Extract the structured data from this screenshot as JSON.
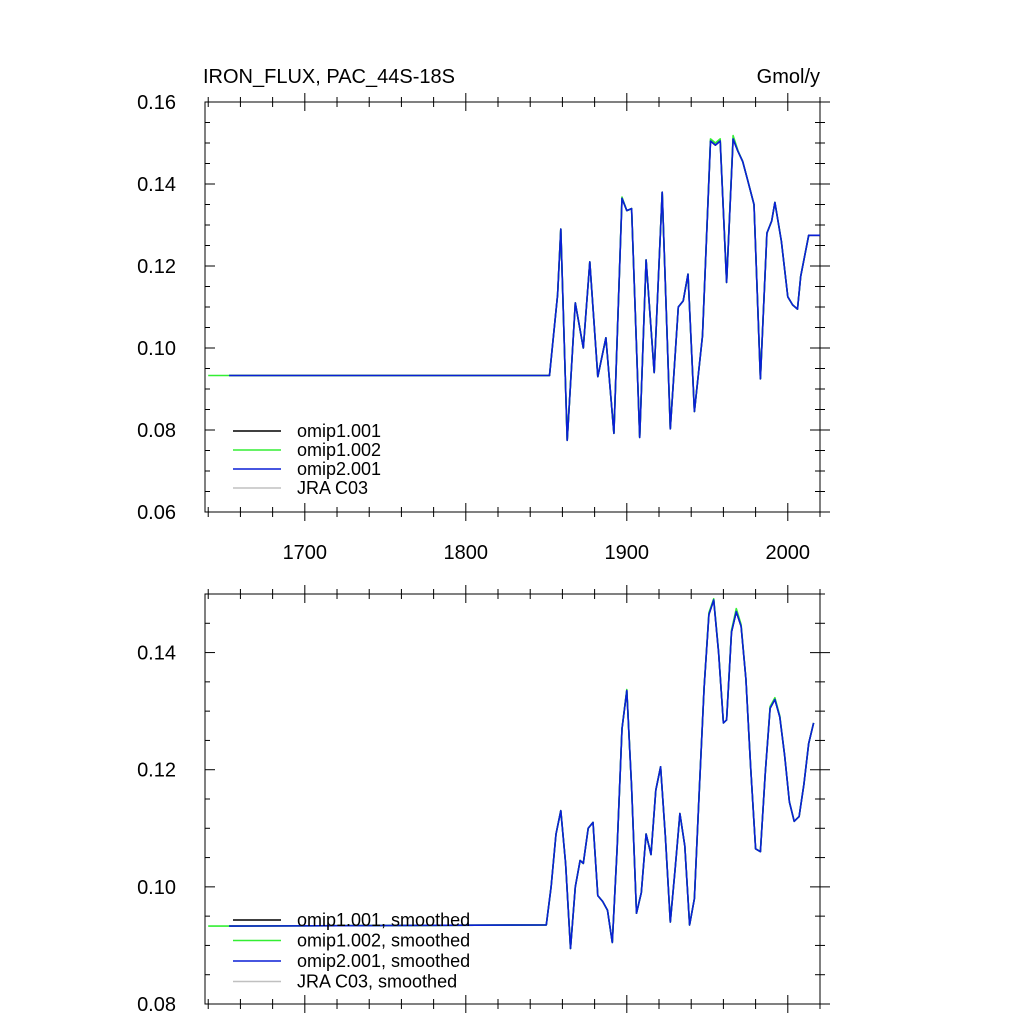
{
  "chart_data": [
    {
      "type": "line",
      "title": "IRON_FLUX, PAC_44S-18S",
      "units": "Gmol/y",
      "xlim": [
        1638,
        2020
      ],
      "ylim": [
        0.06,
        0.16
      ],
      "xticks": [
        1700,
        1800,
        1900,
        2000
      ],
      "yticks": [
        0.06,
        0.08,
        0.1,
        0.12,
        0.14,
        0.16
      ],
      "ytick_labels": [
        "0.06",
        "0.08",
        "0.10",
        "0.12",
        "0.14",
        "0.16"
      ],
      "grid": false,
      "legend_placement": "bottom-left",
      "series": [
        {
          "name": "omip1.001",
          "color": "#000000",
          "x": [
            1653,
            1852,
            1857,
            1859,
            1863,
            1868,
            1873,
            1877,
            1882,
            1887,
            1892,
            1897,
            1900,
            1903,
            1908,
            1912,
            1917,
            1922,
            1927,
            1932,
            1935,
            1938,
            1942,
            1947,
            1952,
            1955,
            1958,
            1962,
            1966,
            1969,
            1972,
            1975,
            1979,
            1983,
            1987,
            1990,
            1992,
            1996,
            2000,
            2003,
            2006,
            2008,
            2013,
            2020
          ],
          "y": [
            0.0933,
            0.0933,
            0.113,
            0.129,
            0.0775,
            0.111,
            0.1,
            0.121,
            0.093,
            0.1025,
            0.0792,
            0.1365,
            0.1335,
            0.134,
            0.0782,
            0.1215,
            0.094,
            0.138,
            0.0803,
            0.11,
            0.1115,
            0.118,
            0.0845,
            0.103,
            0.1505,
            0.1495,
            0.1505,
            0.116,
            0.151,
            0.148,
            0.1455,
            0.141,
            0.135,
            0.0925,
            0.128,
            0.131,
            0.1355,
            0.126,
            0.1125,
            0.1105,
            0.1095,
            0.1175,
            0.1275,
            0.1275
          ]
        },
        {
          "name": "omip1.002",
          "color": "#33ee33",
          "x": [
            1640,
            1653,
            1852,
            1857,
            1859,
            1863,
            1868,
            1873,
            1877,
            1882,
            1887,
            1892,
            1897,
            1900,
            1903,
            1908,
            1912,
            1917,
            1922,
            1927,
            1932,
            1935,
            1938,
            1942,
            1947,
            1952,
            1955,
            1958,
            1962,
            1966,
            1969,
            1972,
            1975,
            1979,
            1983,
            1987,
            1990,
            1992,
            1996,
            2000,
            2003,
            2006,
            2008,
            2013
          ],
          "y": [
            0.0933,
            0.0933,
            0.0933,
            0.113,
            0.129,
            0.0775,
            0.111,
            0.1,
            0.121,
            0.093,
            0.1025,
            0.0792,
            0.1368,
            0.1335,
            0.134,
            0.0782,
            0.1215,
            0.094,
            0.138,
            0.0803,
            0.11,
            0.1115,
            0.118,
            0.0845,
            0.103,
            0.151,
            0.15,
            0.151,
            0.116,
            0.1518,
            0.1482,
            0.1455,
            0.141,
            0.135,
            0.0925,
            0.128,
            0.131,
            0.1355,
            0.126,
            0.1125,
            0.1105,
            0.1095,
            0.1175,
            0.1275
          ]
        },
        {
          "name": "omip2.001",
          "color": "#0a1fd6",
          "x": [
            1653,
            1852,
            1857,
            1859,
            1863,
            1868,
            1873,
            1877,
            1882,
            1887,
            1892,
            1897,
            1900,
            1903,
            1908,
            1912,
            1917,
            1922,
            1927,
            1932,
            1935,
            1938,
            1942,
            1947,
            1952,
            1955,
            1958,
            1962,
            1966,
            1969,
            1972,
            1975,
            1979,
            1983,
            1987,
            1990,
            1992,
            1996,
            2000,
            2003,
            2006,
            2008,
            2013,
            2020
          ],
          "y": [
            0.0933,
            0.0933,
            0.113,
            0.129,
            0.0775,
            0.111,
            0.1,
            0.121,
            0.093,
            0.1025,
            0.0792,
            0.1365,
            0.1335,
            0.134,
            0.0782,
            0.1215,
            0.094,
            0.138,
            0.0803,
            0.11,
            0.1115,
            0.118,
            0.0845,
            0.103,
            0.1505,
            0.1495,
            0.1505,
            0.116,
            0.151,
            0.148,
            0.1455,
            0.141,
            0.135,
            0.0925,
            0.128,
            0.131,
            0.1355,
            0.126,
            0.1125,
            0.1105,
            0.1095,
            0.1175,
            0.1275,
            0.1275
          ]
        },
        {
          "name": "JRA C03",
          "color": "#c0c0c0",
          "x": [],
          "y": []
        }
      ]
    },
    {
      "type": "line",
      "xlim": [
        1638,
        2020
      ],
      "ylim": [
        0.08,
        0.15
      ],
      "xticks": [
        1700,
        1800,
        1900,
        2000
      ],
      "yticks": [
        0.08,
        0.1,
        0.12,
        0.14
      ],
      "ytick_labels": [
        "0.08",
        "0.10",
        "0.12",
        "0.14"
      ],
      "grid": false,
      "legend_placement": "bottom-left",
      "series": [
        {
          "name": "omip1.001, smoothed",
          "color": "#000000",
          "x": [
            1653,
            1850,
            1853,
            1856,
            1859,
            1862,
            1865,
            1868,
            1871,
            1873,
            1876,
            1879,
            1882,
            1885,
            1888,
            1891,
            1894,
            1897,
            1900,
            1903,
            1906,
            1909,
            1912,
            1915,
            1918,
            1921,
            1924,
            1927,
            1930,
            1933,
            1936,
            1939,
            1942,
            1945,
            1948,
            1951,
            1954,
            1957,
            1960,
            1962,
            1965,
            1968,
            1971,
            1974,
            1977,
            1980,
            1983,
            1986,
            1989,
            1992,
            1995,
            1998,
            2001,
            2004,
            2007,
            2010,
            2013,
            2016
          ],
          "y": [
            0.0933,
            0.0935,
            0.1,
            0.109,
            0.113,
            0.104,
            0.0895,
            0.1,
            0.1045,
            0.104,
            0.11,
            0.111,
            0.0985,
            0.0975,
            0.096,
            0.0905,
            0.1065,
            0.127,
            0.1335,
            0.117,
            0.0955,
            0.099,
            0.109,
            0.1055,
            0.1165,
            0.1205,
            0.1085,
            0.094,
            0.103,
            0.1125,
            0.107,
            0.0935,
            0.098,
            0.1165,
            0.134,
            0.1465,
            0.149,
            0.14,
            0.128,
            0.1285,
            0.1435,
            0.147,
            0.1445,
            0.1355,
            0.12,
            0.1065,
            0.106,
            0.1195,
            0.1305,
            0.132,
            0.129,
            0.1225,
            0.1145,
            0.1112,
            0.112,
            0.1175,
            0.1245,
            0.128
          ]
        },
        {
          "name": "omip1.002, smoothed",
          "color": "#33ee33",
          "x": [
            1640,
            1653,
            1850,
            1853,
            1856,
            1859,
            1862,
            1865,
            1868,
            1871,
            1873,
            1876,
            1879,
            1882,
            1885,
            1888,
            1891,
            1894,
            1897,
            1900,
            1903,
            1906,
            1909,
            1912,
            1915,
            1918,
            1921,
            1924,
            1927,
            1930,
            1933,
            1936,
            1939,
            1942,
            1945,
            1948,
            1951,
            1954,
            1957,
            1960,
            1962,
            1965,
            1968,
            1971,
            1974,
            1977,
            1980,
            1983,
            1986,
            1989,
            1992,
            1995,
            1998,
            2001,
            2004,
            2007,
            2010,
            2013,
            2016
          ],
          "y": [
            0.0933,
            0.0933,
            0.0935,
            0.1,
            0.109,
            0.113,
            0.104,
            0.0895,
            0.1,
            0.1045,
            0.104,
            0.11,
            0.111,
            0.0985,
            0.0975,
            0.096,
            0.0905,
            0.1065,
            0.127,
            0.1337,
            0.117,
            0.0955,
            0.099,
            0.109,
            0.1055,
            0.1165,
            0.1205,
            0.1085,
            0.094,
            0.103,
            0.1125,
            0.107,
            0.0935,
            0.098,
            0.1165,
            0.134,
            0.1468,
            0.1492,
            0.1402,
            0.128,
            0.1285,
            0.1438,
            0.1475,
            0.1448,
            0.1355,
            0.12,
            0.1065,
            0.106,
            0.1195,
            0.1308,
            0.1323,
            0.1292,
            0.1225,
            0.1145,
            0.1112,
            0.112,
            0.1175,
            0.1245,
            0.128
          ]
        },
        {
          "name": "omip2.001, smoothed",
          "color": "#0a1fd6",
          "x": [
            1653,
            1850,
            1853,
            1856,
            1859,
            1862,
            1865,
            1868,
            1871,
            1873,
            1876,
            1879,
            1882,
            1885,
            1888,
            1891,
            1894,
            1897,
            1900,
            1903,
            1906,
            1909,
            1912,
            1915,
            1918,
            1921,
            1924,
            1927,
            1930,
            1933,
            1936,
            1939,
            1942,
            1945,
            1948,
            1951,
            1954,
            1957,
            1960,
            1962,
            1965,
            1968,
            1971,
            1974,
            1977,
            1980,
            1983,
            1986,
            1989,
            1992,
            1995,
            1998,
            2001,
            2004,
            2007,
            2010,
            2013,
            2016
          ],
          "y": [
            0.0933,
            0.0935,
            0.1,
            0.109,
            0.113,
            0.104,
            0.0895,
            0.1,
            0.1045,
            0.104,
            0.11,
            0.111,
            0.0985,
            0.0975,
            0.096,
            0.0905,
            0.1065,
            0.127,
            0.1335,
            0.117,
            0.0955,
            0.099,
            0.109,
            0.1055,
            0.1165,
            0.1205,
            0.1085,
            0.094,
            0.103,
            0.1125,
            0.107,
            0.0935,
            0.098,
            0.1165,
            0.134,
            0.1465,
            0.149,
            0.14,
            0.128,
            0.1285,
            0.1435,
            0.147,
            0.1445,
            0.1355,
            0.12,
            0.1065,
            0.106,
            0.1195,
            0.1305,
            0.132,
            0.129,
            0.1225,
            0.1145,
            0.1112,
            0.112,
            0.1175,
            0.1245,
            0.128
          ]
        },
        {
          "name": "JRA C03, smoothed",
          "color": "#c0c0c0",
          "x": [],
          "y": []
        }
      ]
    }
  ]
}
